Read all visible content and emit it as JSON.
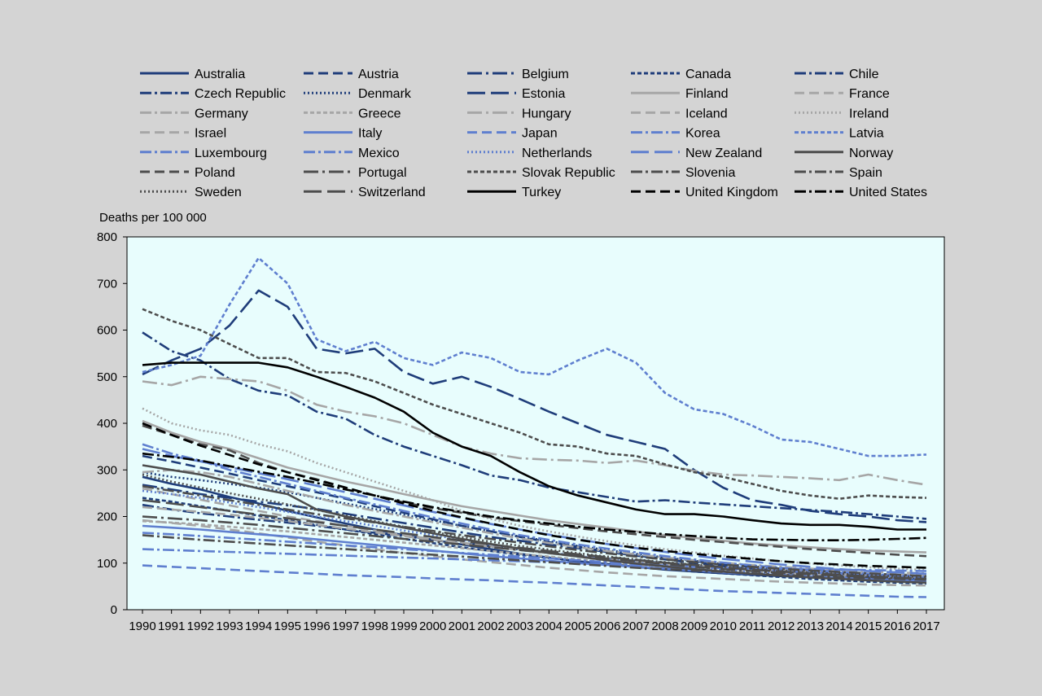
{
  "chart_data": {
    "type": "line",
    "ylabel": "Deaths per 100 000",
    "ylim": [
      0,
      800
    ],
    "yticks": [
      0,
      100,
      200,
      300,
      400,
      500,
      600,
      700,
      800
    ],
    "x": [
      "1990",
      "1991",
      "1992",
      "1993",
      "1994",
      "1995",
      "1996",
      "1997",
      "1998",
      "1999",
      "2000",
      "2001",
      "2002",
      "2003",
      "2004",
      "2005",
      "2006",
      "2007",
      "2008",
      "2009",
      "2010",
      "2011",
      "2012",
      "2013",
      "2014",
      "2015",
      "2016",
      "2017"
    ],
    "legend_position": "top",
    "plot_background": "#e8fdfd",
    "series": [
      {
        "name": "Australia",
        "color": "#1f3d7a",
        "dash": "",
        "values": [
          285,
          270,
          258,
          242,
          228,
          212,
          198,
          185,
          172,
          160,
          150,
          140,
          130,
          120,
          112,
          104,
          98,
          92,
          86,
          82,
          78,
          75,
          72,
          70,
          68,
          66,
          64,
          62
        ]
      },
      {
        "name": "Austria",
        "color": "#1f3d7a",
        "dash": "12,6",
        "values": [
          330,
          318,
          305,
          292,
          278,
          265,
          252,
          238,
          222,
          208,
          194,
          180,
          168,
          156,
          145,
          135,
          125,
          116,
          108,
          100,
          94,
          88,
          83,
          78,
          74,
          70,
          67,
          64
        ]
      },
      {
        "name": "Belgium",
        "color": "#1f3d7a",
        "dash": "18,5,3,5",
        "values": [
          268,
          258,
          248,
          240,
          232,
          224,
          216,
          206,
          196,
          186,
          176,
          166,
          156,
          148,
          140,
          132,
          124,
          116,
          110,
          104,
          98,
          92,
          88,
          84,
          80,
          76,
          72,
          68
        ]
      },
      {
        "name": "Canada",
        "color": "#1f3d7a",
        "dash": "5,3",
        "values": [
          240,
          232,
          222,
          212,
          202,
          192,
          182,
          172,
          162,
          152,
          143,
          134,
          126,
          118,
          111,
          104,
          98,
          92,
          87,
          82,
          78,
          74,
          70,
          66,
          63,
          60,
          58,
          56
        ]
      },
      {
        "name": "Chile",
        "color": "#1f3d7a",
        "dash": "14,4,3,4",
        "values": [
          225,
          215,
          207,
          200,
          193,
          187,
          180,
          172,
          165,
          158,
          150,
          143,
          136,
          129,
          122,
          116,
          110,
          105,
          100,
          96,
          92,
          88,
          84,
          81,
          78,
          75,
          72,
          70
        ]
      },
      {
        "name": "Czech Republic",
        "color": "#1f3d7a",
        "dash": "14,4,3,4",
        "values": [
          595,
          555,
          535,
          495,
          470,
          460,
          425,
          410,
          375,
          350,
          330,
          310,
          288,
          278,
          262,
          252,
          242,
          232,
          235,
          230,
          226,
          222,
          218,
          214,
          210,
          205,
          200,
          195
        ]
      },
      {
        "name": "Denmark",
        "color": "#1f3d7a",
        "dash": "2,3",
        "values": [
          295,
          285,
          278,
          270,
          262,
          252,
          240,
          228,
          216,
          204,
          192,
          180,
          168,
          157,
          147,
          137,
          128,
          120,
          112,
          105,
          98,
          93,
          88,
          84,
          80,
          77,
          74,
          71
        ]
      },
      {
        "name": "Estonia",
        "color": "#1f3d7a",
        "dash": "22,7",
        "values": [
          505,
          535,
          560,
          610,
          685,
          650,
          560,
          550,
          560,
          510,
          485,
          500,
          478,
          452,
          425,
          400,
          375,
          360,
          345,
          300,
          262,
          235,
          225,
          212,
          205,
          200,
          192,
          188
        ]
      },
      {
        "name": "Finland",
        "color": "#a6a6a6",
        "dash": "",
        "values": [
          405,
          380,
          360,
          345,
          325,
          305,
          290,
          275,
          262,
          248,
          235,
          222,
          212,
          202,
          192,
          184,
          176,
          168,
          160,
          154,
          148,
          142,
          138,
          134,
          130,
          127,
          125,
          123
        ]
      },
      {
        "name": "France",
        "color": "#a6a6a6",
        "dash": "12,6",
        "values": [
          192,
          186,
          180,
          172,
          164,
          155,
          146,
          138,
          130,
          122,
          115,
          108,
          102,
          96,
          90,
          85,
          80,
          76,
          72,
          69,
          66,
          63,
          60,
          58,
          56,
          54,
          53,
          52
        ]
      },
      {
        "name": "Germany",
        "color": "#a6a6a6",
        "dash": "14,4,3,4",
        "values": [
          295,
          300,
          295,
          285,
          270,
          255,
          240,
          225,
          212,
          200,
          188,
          176,
          164,
          153,
          143,
          134,
          126,
          119,
          112,
          106,
          101,
          96,
          92,
          88,
          85,
          82,
          80,
          78
        ]
      },
      {
        "name": "Greece",
        "color": "#a6a6a6",
        "dash": "5,3",
        "values": [
          190,
          187,
          183,
          178,
          173,
          168,
          162,
          156,
          150,
          144,
          138,
          132,
          126,
          120,
          114,
          108,
          102,
          97,
          92,
          88,
          84,
          81,
          78,
          76,
          74,
          72,
          70,
          68
        ]
      },
      {
        "name": "Hungary",
        "color": "#a6a6a6",
        "dash": "18,5,3,5",
        "values": [
          490,
          482,
          500,
          495,
          490,
          470,
          440,
          425,
          415,
          400,
          375,
          350,
          335,
          325,
          322,
          320,
          315,
          320,
          310,
          298,
          290,
          288,
          285,
          282,
          278,
          290,
          278,
          268
        ]
      },
      {
        "name": "Iceland",
        "color": "#a6a6a6",
        "dash": "12,6",
        "values": [
          260,
          248,
          236,
          224,
          212,
          200,
          190,
          180,
          170,
          160,
          152,
          144,
          136,
          128,
          121,
          114,
          108,
          102,
          97,
          92,
          88,
          84,
          80,
          78,
          76,
          74,
          72,
          70
        ]
      },
      {
        "name": "Ireland",
        "color": "#a6a6a6",
        "dash": "2,3",
        "values": [
          432,
          400,
          385,
          375,
          355,
          340,
          315,
          295,
          275,
          255,
          235,
          212,
          195,
          180,
          168,
          157,
          147,
          138,
          130,
          123,
          116,
          110,
          104,
          99,
          95,
          91,
          88,
          85
        ]
      },
      {
        "name": "Israel",
        "color": "#a6a6a6",
        "dash": "12,6",
        "values": [
          220,
          215,
          210,
          204,
          197,
          190,
          182,
          174,
          166,
          158,
          150,
          142,
          135,
          128,
          121,
          115,
          109,
          104,
          99,
          95,
          91,
          88,
          85,
          82,
          80,
          78,
          76,
          74
        ]
      },
      {
        "name": "Italy",
        "color": "#5f7fcf",
        "dash": "",
        "values": [
          180,
          176,
          172,
          167,
          162,
          157,
          151,
          145,
          139,
          133,
          127,
          121,
          115,
          110,
          105,
          100,
          96,
          92,
          88,
          84,
          80,
          77,
          74,
          71,
          68,
          66,
          64,
          62
        ]
      },
      {
        "name": "Japan",
        "color": "#5f7fcf",
        "dash": "12,6",
        "values": [
          95,
          92,
          89,
          86,
          83,
          80,
          77,
          74,
          72,
          70,
          67,
          65,
          63,
          60,
          58,
          55,
          52,
          49,
          46,
          43,
          40,
          38,
          36,
          34,
          32,
          30,
          28,
          27
        ]
      },
      {
        "name": "Korea",
        "color": "#5f7fcf",
        "dash": "14,4,3,4",
        "values": [
          165,
          162,
          158,
          154,
          150,
          146,
          142,
          138,
          134,
          130,
          126,
          122,
          118,
          114,
          110,
          106,
          102,
          98,
          95,
          92,
          89,
          86,
          83,
          80,
          77,
          74,
          71,
          68
        ]
      },
      {
        "name": "Latvia",
        "color": "#5f7fcf",
        "dash": "5,3",
        "values": [
          510,
          525,
          545,
          655,
          755,
          700,
          580,
          555,
          575,
          540,
          525,
          552,
          540,
          510,
          505,
          535,
          560,
          530,
          465,
          430,
          420,
          395,
          365,
          360,
          345,
          330,
          330,
          333
        ]
      },
      {
        "name": "Luxembourg",
        "color": "#5f7fcf",
        "dash": "14,4,3,4",
        "values": [
          355,
          335,
          320,
          300,
          285,
          270,
          255,
          240,
          226,
          212,
          198,
          185,
          172,
          160,
          150,
          140,
          131,
          123,
          115,
          108,
          101,
          95,
          90,
          85,
          81,
          77,
          74,
          71
        ]
      },
      {
        "name": "Mexico",
        "color": "#5f7fcf",
        "dash": "14,4,3,4",
        "values": [
          130,
          128,
          126,
          124,
          122,
          120,
          118,
          116,
          114,
          112,
          110,
          108,
          106,
          104,
          102,
          100,
          98,
          96,
          94,
          92,
          90,
          89,
          88,
          87,
          86,
          85,
          84,
          83
        ]
      },
      {
        "name": "Netherlands",
        "color": "#5f7fcf",
        "dash": "2,3",
        "values": [
          255,
          248,
          240,
          230,
          220,
          210,
          200,
          190,
          180,
          170,
          160,
          150,
          140,
          131,
          123,
          115,
          108,
          101,
          95,
          90,
          85,
          81,
          77,
          74,
          71,
          69,
          67,
          65
        ]
      },
      {
        "name": "New Zealand",
        "color": "#5f7fcf",
        "dash": "22,7",
        "values": [
          345,
          330,
          318,
          306,
          293,
          280,
          266,
          252,
          238,
          224,
          210,
          197,
          184,
          172,
          161,
          151,
          141,
          132,
          124,
          116,
          109,
          103,
          97,
          92,
          87,
          83,
          80,
          77
        ]
      },
      {
        "name": "Norway",
        "color": "#4d4d4d",
        "dash": "",
        "values": [
          310,
          300,
          290,
          275,
          260,
          248,
          215,
          200,
          188,
          176,
          164,
          152,
          141,
          131,
          122,
          114,
          106,
          99,
          93,
          87,
          82,
          77,
          73,
          69,
          66,
          63,
          60,
          58
        ]
      },
      {
        "name": "Poland",
        "color": "#4d4d4d",
        "dash": "12,6",
        "values": [
          395,
          375,
          355,
          342,
          315,
          295,
          280,
          262,
          245,
          230,
          218,
          208,
          198,
          190,
          182,
          175,
          168,
          162,
          156,
          150,
          145,
          140,
          135,
          130,
          126,
          122,
          118,
          115
        ]
      },
      {
        "name": "Portugal",
        "color": "#4d4d4d",
        "dash": "18,5,3,5",
        "values": [
          200,
          196,
          192,
          187,
          182,
          176,
          170,
          164,
          158,
          152,
          146,
          140,
          134,
          128,
          122,
          116,
          110,
          104,
          98,
          92,
          87,
          83,
          79,
          76,
          73,
          70,
          68,
          66
        ]
      },
      {
        "name": "Slovak Republic",
        "color": "#4d4d4d",
        "dash": "5,3",
        "values": [
          645,
          620,
          600,
          570,
          540,
          540,
          510,
          508,
          490,
          465,
          440,
          420,
          400,
          380,
          355,
          350,
          335,
          330,
          312,
          295,
          285,
          270,
          255,
          245,
          238,
          245,
          242,
          240
        ]
      },
      {
        "name": "Slovenia",
        "color": "#4d4d4d",
        "dash": "14,4,3,4",
        "values": [
          265,
          255,
          245,
          235,
          225,
          215,
          205,
          196,
          187,
          178,
          169,
          160,
          152,
          144,
          136,
          128,
          121,
          114,
          108,
          102,
          97,
          92,
          88,
          84,
          81,
          78,
          75,
          72
        ]
      },
      {
        "name": "Spain",
        "color": "#4d4d4d",
        "dash": "14,4,3,4",
        "values": [
          160,
          155,
          150,
          146,
          142,
          138,
          134,
          130,
          126,
          122,
          118,
          114,
          110,
          106,
          102,
          98,
          94,
          90,
          87,
          84,
          81,
          78,
          75,
          72,
          70,
          68,
          66,
          64
        ]
      },
      {
        "name": "Sweden",
        "color": "#4d4d4d",
        "dash": "2,3",
        "values": [
          290,
          275,
          262,
          250,
          238,
          226,
          214,
          202,
          190,
          178,
          167,
          156,
          146,
          137,
          129,
          121,
          114,
          108,
          102,
          97,
          92,
          88,
          84,
          80,
          77,
          74,
          72,
          70
        ]
      },
      {
        "name": "Switzerland",
        "color": "#4d4d4d",
        "dash": "22,7",
        "values": [
          235,
          228,
          220,
          212,
          204,
          196,
          188,
          180,
          172,
          164,
          156,
          148,
          140,
          133,
          126,
          119,
          113,
          107,
          101,
          96,
          91,
          86,
          82,
          78,
          75,
          72,
          69,
          66
        ]
      },
      {
        "name": "Turkey",
        "color": "#000000",
        "dash": "",
        "values": [
          525,
          530,
          530,
          530,
          530,
          520,
          500,
          478,
          455,
          425,
          380,
          350,
          330,
          295,
          265,
          245,
          230,
          215,
          205,
          205,
          200,
          192,
          185,
          182,
          182,
          178,
          172,
          172
        ]
      },
      {
        "name": "United Kingdom",
        "color": "#000000",
        "dash": "12,6",
        "values": [
          400,
          375,
          352,
          332,
          312,
          295,
          278,
          262,
          245,
          228,
          212,
          198,
          185,
          172,
          160,
          150,
          141,
          133,
          126,
          120,
          114,
          109,
          104,
          100,
          97,
          94,
          92,
          90
        ]
      },
      {
        "name": "United States",
        "color": "#000000",
        "dash": "14,4,3,4",
        "values": [
          335,
          328,
          320,
          308,
          296,
          285,
          272,
          258,
          245,
          232,
          220,
          210,
          200,
          192,
          185,
          178,
          172,
          167,
          162,
          158,
          154,
          151,
          150,
          149,
          149,
          150,
          152,
          154
        ]
      }
    ]
  }
}
